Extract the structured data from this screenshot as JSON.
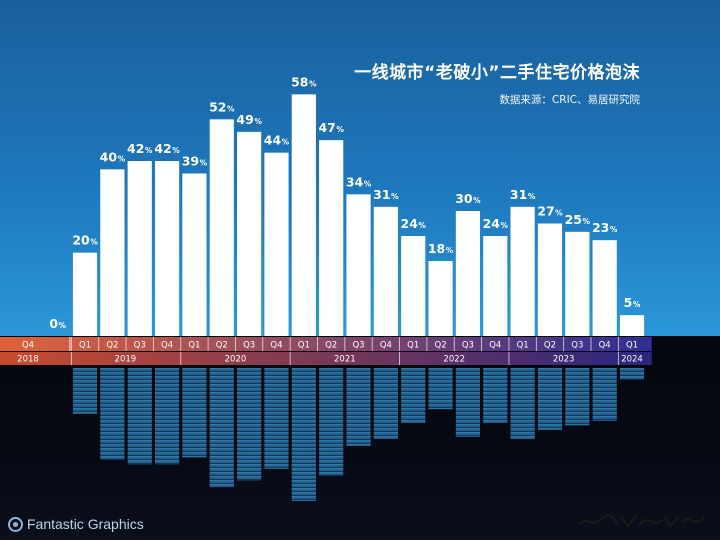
{
  "header": {
    "title": "一线城市“老破小”二手住宅价格泡沫",
    "source": "数据来源：CRIC、易居研究院"
  },
  "brand": {
    "name": "Fantastic Graphics"
  },
  "colors": {
    "bar": "#ffffff",
    "quarter_strip_start": "#e0623a",
    "quarter_strip_end": "#2f2f93",
    "year_strip_start": "#c94b2e",
    "year_strip_end": "#2a2680",
    "reflection": "#3fa0d8"
  },
  "chart_data": {
    "type": "bar",
    "title": "一线城市“老破小”二手住宅价格泡沫",
    "subtitle": "数据来源：CRIC、易居研究院",
    "categories": [
      "Q4",
      "Q1",
      "Q2",
      "Q3",
      "Q4",
      "Q1",
      "Q2",
      "Q3",
      "Q4",
      "Q1",
      "Q2",
      "Q3",
      "Q4",
      "Q1",
      "Q2",
      "Q3",
      "Q4",
      "Q1",
      "Q2",
      "Q3",
      "Q4",
      "Q1"
    ],
    "years": [
      {
        "label": "2018",
        "count": 1
      },
      {
        "label": "2019",
        "count": 4
      },
      {
        "label": "2020",
        "count": 4
      },
      {
        "label": "2021",
        "count": 4
      },
      {
        "label": "2022",
        "count": 4
      },
      {
        "label": "2023",
        "count": 4
      },
      {
        "label": "2024",
        "count": 1
      }
    ],
    "values": [
      0,
      20,
      40,
      42,
      42,
      39,
      52,
      49,
      44,
      58,
      47,
      34,
      31,
      24,
      18,
      30,
      24,
      31,
      27,
      25,
      23,
      5
    ],
    "unit": "%",
    "ylim": [
      0,
      60
    ],
    "grid": false,
    "legend": "none"
  }
}
